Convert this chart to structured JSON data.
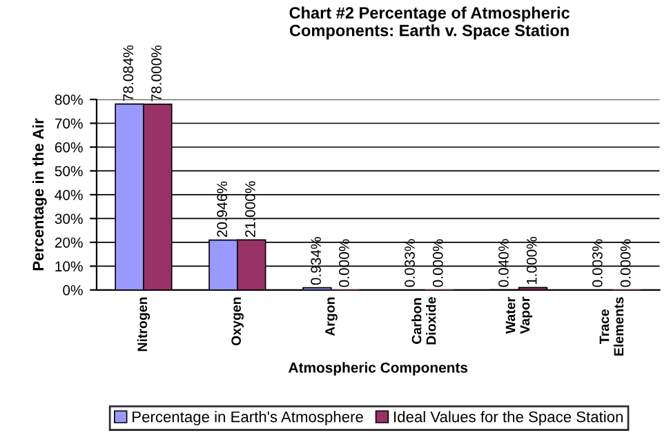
{
  "chart_data": {
    "type": "bar",
    "title": "Chart #2 Percentage of Atmospheric Components: Earth v. Space Station",
    "xlabel": "Atmospheric Components",
    "ylabel": "Percentage in the Air",
    "categories": [
      "Nitrogen",
      "Oxygen",
      "Argon",
      "Carbon Dioxide",
      "Water Vapor",
      "Trace Elements"
    ],
    "series": [
      {
        "name": "Percentage in Earth's Atmosphere",
        "color": "#9999ff",
        "values": [
          78.084,
          20.946,
          0.934,
          0.033,
          0.04,
          0.003
        ],
        "value_labels": [
          "78.084%",
          "20.946%",
          "0.934%",
          "0.033%",
          "0.040%",
          "0.003%"
        ]
      },
      {
        "name": "Ideal Values for the Space Station",
        "color": "#993366",
        "values": [
          78.0,
          21.0,
          0,
          0,
          1.0,
          0
        ],
        "value_labels": [
          "78.000%",
          "21.000%",
          "0.000%",
          "0.000%",
          "1.000%",
          "0.000%"
        ]
      }
    ],
    "ylim": [
      0,
      80
    ],
    "yticks": [
      {
        "value": 0,
        "label": "0%"
      },
      {
        "value": 10,
        "label": "10%"
      },
      {
        "value": 20,
        "label": "20%"
      },
      {
        "value": 30,
        "label": "30%"
      },
      {
        "value": 40,
        "label": "40%"
      },
      {
        "value": 50,
        "label": "50%"
      },
      {
        "value": 60,
        "label": "60%"
      },
      {
        "value": 70,
        "label": "70%"
      },
      {
        "value": 80,
        "label": "80%"
      }
    ],
    "grid": "y",
    "legend": "bottom"
  }
}
